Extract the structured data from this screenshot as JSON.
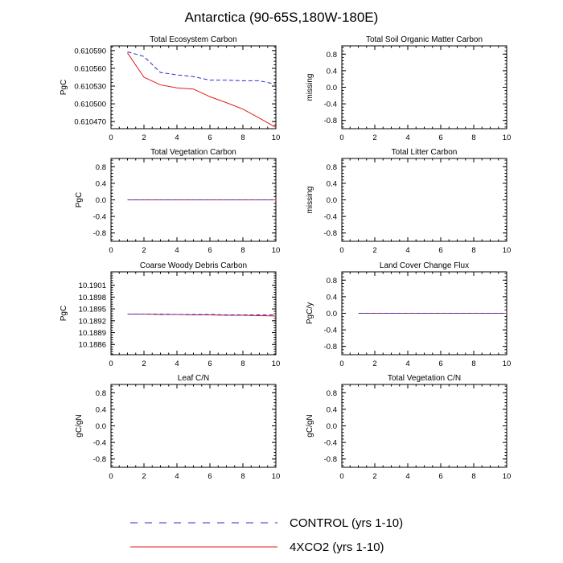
{
  "title": "Antarctica (90-65S,180W-180E)",
  "colors": {
    "control": "#2b2bd6",
    "co2": "#e31a1c",
    "axis": "#000000"
  },
  "legend": {
    "control": "CONTROL (yrs 1-10)",
    "co2": "4XCO2 (yrs 1-10)"
  },
  "chart_data": [
    {
      "type": "line",
      "title": "Total Ecosystem Carbon",
      "ylabel": "PgC",
      "xlabel": "",
      "xlim": [
        0,
        10
      ],
      "xticks": [
        0,
        2,
        4,
        6,
        8,
        10
      ],
      "ylim": [
        0.610458,
        0.610598
      ],
      "yticks": [
        0.61047,
        0.6105,
        0.61053,
        0.61056,
        0.61059
      ],
      "ytick_labels": [
        "0.610470",
        "0.610500",
        "0.610530",
        "0.610560",
        "0.610590"
      ],
      "series": [
        {
          "name": "CONTROL (yrs 1-10)",
          "style": "dashed",
          "x": [
            1,
            2,
            3,
            4,
            5,
            6,
            7,
            8,
            9,
            10
          ],
          "values": [
            0.610588,
            0.61058,
            0.610553,
            0.610549,
            0.610546,
            0.61054,
            0.61054,
            0.610539,
            0.610539,
            0.610533
          ]
        },
        {
          "name": "4XCO2 (yrs 1-10)",
          "style": "solid",
          "x": [
            1,
            2,
            3,
            4,
            5,
            6,
            7,
            8,
            9,
            10
          ],
          "values": [
            0.610586,
            0.610545,
            0.610532,
            0.610527,
            0.610525,
            0.610512,
            0.610502,
            0.610491,
            0.610476,
            0.61046
          ]
        }
      ]
    },
    {
      "type": "line",
      "title": "Total Soil Organic Matter Carbon",
      "ylabel": "missing",
      "xlim": [
        0,
        10
      ],
      "xticks": [
        0,
        2,
        4,
        6,
        8,
        10
      ],
      "ylim": [
        -1,
        1
      ],
      "yticks": [
        -0.8,
        -0.4,
        0,
        0.4,
        0.8
      ],
      "ytick_labels": [
        "-0.8",
        "-0.4",
        "0.0",
        "0.4",
        "0.8"
      ],
      "series": []
    },
    {
      "type": "line",
      "title": "Total Vegetation Carbon",
      "ylabel": "PgC",
      "xlim": [
        0,
        10
      ],
      "xticks": [
        0,
        2,
        4,
        6,
        8,
        10
      ],
      "ylim": [
        -1,
        1
      ],
      "yticks": [
        -0.8,
        -0.4,
        0,
        0.4,
        0.8
      ],
      "ytick_labels": [
        "-0.8",
        "-0.4",
        "0.0",
        "0.4",
        "0.8"
      ],
      "series": [
        {
          "name": "CONTROL (yrs 1-10)",
          "style": "dashed",
          "x": [
            1,
            2,
            3,
            4,
            5,
            6,
            7,
            8,
            9,
            10
          ],
          "values": [
            0,
            0,
            0,
            0,
            0,
            0,
            0,
            0,
            0,
            0
          ]
        },
        {
          "name": "4XCO2 (yrs 1-10)",
          "style": "solid",
          "x": [
            1,
            2,
            3,
            4,
            5,
            6,
            7,
            8,
            9,
            10
          ],
          "values": [
            0,
            0,
            0,
            0,
            0,
            0,
            0,
            0,
            0,
            0
          ]
        }
      ]
    },
    {
      "type": "line",
      "title": "Total Litter Carbon",
      "ylabel": "missing",
      "xlim": [
        0,
        10
      ],
      "xticks": [
        0,
        2,
        4,
        6,
        8,
        10
      ],
      "ylim": [
        -1,
        1
      ],
      "yticks": [
        -0.8,
        -0.4,
        0,
        0.4,
        0.8
      ],
      "ytick_labels": [
        "-0.8",
        "-0.4",
        "0.0",
        "0.4",
        "0.8"
      ],
      "series": []
    },
    {
      "type": "line",
      "title": "Coarse Woody Debris Carbon",
      "ylabel": "PgC",
      "xlim": [
        0,
        10
      ],
      "xticks": [
        0,
        2,
        4,
        6,
        8,
        10
      ],
      "ylim": [
        10.18834,
        10.19044
      ],
      "yticks": [
        10.1886,
        10.1889,
        10.1892,
        10.1895,
        10.1898,
        10.1901
      ],
      "ytick_labels": [
        "10.1886",
        "10.1889",
        "10.1892",
        "10.1895",
        "10.1898",
        "10.1901"
      ],
      "series": [
        {
          "name": "CONTROL (yrs 1-10)",
          "style": "dashed",
          "x": [
            1,
            2,
            3,
            4,
            5,
            6,
            7,
            8,
            9,
            10
          ],
          "values": [
            10.18937,
            10.18937,
            10.18937,
            10.18936,
            10.18936,
            10.18936,
            10.18935,
            10.18935,
            10.18935,
            10.18935
          ]
        },
        {
          "name": "4XCO2 (yrs 1-10)",
          "style": "solid",
          "x": [
            1,
            2,
            3,
            4,
            5,
            6,
            7,
            8,
            9,
            10
          ],
          "values": [
            10.18937,
            10.18937,
            10.18936,
            10.18936,
            10.18935,
            10.18935,
            10.18934,
            10.18934,
            10.18933,
            10.18932
          ]
        }
      ]
    },
    {
      "type": "line",
      "title": "Land Cover Change Flux",
      "ylabel": "PgC/y",
      "xlim": [
        0,
        10
      ],
      "xticks": [
        0,
        2,
        4,
        6,
        8,
        10
      ],
      "ylim": [
        -1,
        1
      ],
      "yticks": [
        -0.8,
        -0.4,
        0,
        0.4,
        0.8
      ],
      "ytick_labels": [
        "-0.8",
        "-0.4",
        "0.0",
        "0.4",
        "0.8"
      ],
      "series": [
        {
          "name": "CONTROL (yrs 1-10)",
          "style": "dashed",
          "x": [
            1,
            2,
            3,
            4,
            5,
            6,
            7,
            8,
            9,
            10
          ],
          "values": [
            0,
            0,
            0,
            0,
            0,
            0,
            0,
            0,
            0,
            0
          ]
        },
        {
          "name": "4XCO2 (yrs 1-10)",
          "style": "solid",
          "x": [
            1,
            2,
            3,
            4,
            5,
            6,
            7,
            8,
            9,
            10
          ],
          "values": [
            0,
            0,
            0,
            0,
            0,
            0,
            0,
            0,
            0,
            0
          ]
        }
      ]
    },
    {
      "type": "line",
      "title": "Leaf C/N",
      "ylabel": "gC/gN",
      "xlim": [
        0,
        10
      ],
      "xticks": [
        0,
        2,
        4,
        6,
        8,
        10
      ],
      "ylim": [
        -1,
        1
      ],
      "yticks": [
        -0.8,
        -0.4,
        0,
        0.4,
        0.8
      ],
      "ytick_labels": [
        "-0.8",
        "-0.4",
        "0.0",
        "0.4",
        "0.8"
      ],
      "series": []
    },
    {
      "type": "line",
      "title": "Total Vegetation C/N",
      "ylabel": "gC/gN",
      "xlim": [
        0,
        10
      ],
      "xticks": [
        0,
        2,
        4,
        6,
        8,
        10
      ],
      "ylim": [
        -1,
        1
      ],
      "yticks": [
        -0.8,
        -0.4,
        0,
        0.4,
        0.8
      ],
      "ytick_labels": [
        "-0.8",
        "-0.4",
        "0.0",
        "0.4",
        "0.8"
      ],
      "series": []
    }
  ]
}
